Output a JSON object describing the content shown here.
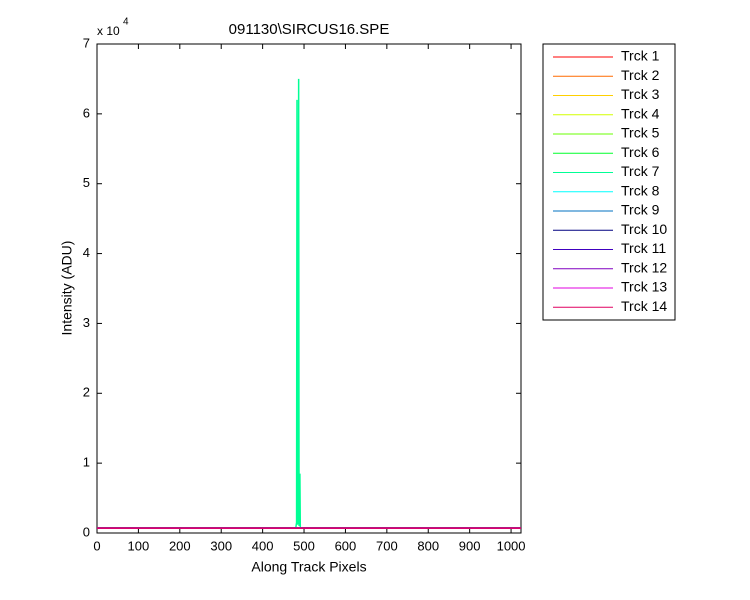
{
  "chart_data": {
    "type": "line",
    "title": "091130\\SIRCUS16.SPE",
    "x_label": "Along Track Pixels",
    "y_label": "Intensity (ADU)",
    "y_multiplier": {
      "base": "x 10",
      "exponent": "4"
    },
    "x": [
      0,
      470,
      480,
      482,
      483,
      484,
      486,
      487,
      488,
      490,
      491,
      500,
      1024
    ],
    "xlim": [
      0,
      1024
    ],
    "xticks": [
      0,
      100,
      200,
      300,
      400,
      500,
      600,
      700,
      800,
      900,
      1000
    ],
    "ylim": [
      0,
      70000
    ],
    "yticks": [
      {
        "value": 0,
        "label": "0"
      },
      {
        "value": 10000,
        "label": "1"
      },
      {
        "value": 20000,
        "label": "2"
      },
      {
        "value": 30000,
        "label": "3"
      },
      {
        "value": 40000,
        "label": "4"
      },
      {
        "value": 50000,
        "label": "5"
      },
      {
        "value": 60000,
        "label": "6"
      },
      {
        "value": 70000,
        "label": "7"
      }
    ],
    "grid": false,
    "legend": "outside-right",
    "series": [
      {
        "name": "Trck 1",
        "color": "#ff0000",
        "values": [
          700,
          700,
          700,
          700,
          700,
          700,
          700,
          700,
          700,
          700,
          700,
          700,
          700
        ]
      },
      {
        "name": "Trck 2",
        "color": "#ff6a00",
        "values": [
          700,
          700,
          700,
          700,
          700,
          700,
          700,
          700,
          700,
          700,
          700,
          700,
          700
        ]
      },
      {
        "name": "Trck 3",
        "color": "#ffd000",
        "values": [
          700,
          700,
          700,
          700,
          700,
          700,
          700,
          700,
          700,
          700,
          700,
          700,
          700
        ]
      },
      {
        "name": "Trck 4",
        "color": "#d4ff00",
        "values": [
          700,
          700,
          700,
          700,
          700,
          700,
          700,
          700,
          700,
          700,
          700,
          700,
          700
        ]
      },
      {
        "name": "Trck 5",
        "color": "#6aff00",
        "values": [
          700,
          700,
          700,
          700,
          700,
          700,
          700,
          700,
          700,
          700,
          700,
          700,
          700
        ]
      },
      {
        "name": "Trck 6",
        "color": "#00ff2b",
        "values": [
          700,
          700,
          700,
          700,
          700,
          700,
          700,
          700,
          700,
          700,
          700,
          700,
          700
        ]
      },
      {
        "name": "Trck 7",
        "color": "#00ff95",
        "values": [
          700,
          700,
          700,
          1500,
          62000,
          1200,
          2000,
          65000,
          1000,
          8500,
          700,
          700,
          700
        ]
      },
      {
        "name": "Trck 8",
        "color": "#00ffff",
        "values": [
          700,
          700,
          700,
          700,
          700,
          700,
          700,
          700,
          700,
          700,
          700,
          700,
          700
        ]
      },
      {
        "name": "Trck 9",
        "color": "#0070c0",
        "values": [
          700,
          700,
          700,
          700,
          700,
          700,
          700,
          700,
          700,
          700,
          700,
          700,
          700
        ]
      },
      {
        "name": "Trck 10",
        "color": "#000080",
        "values": [
          700,
          700,
          700,
          700,
          700,
          700,
          700,
          700,
          700,
          700,
          700,
          700,
          700
        ]
      },
      {
        "name": "Trck 11",
        "color": "#4000c0",
        "values": [
          700,
          700,
          700,
          700,
          700,
          700,
          700,
          700,
          700,
          700,
          700,
          700,
          700
        ]
      },
      {
        "name": "Trck 12",
        "color": "#8000c0",
        "values": [
          700,
          700,
          700,
          700,
          700,
          700,
          700,
          700,
          700,
          700,
          700,
          700,
          700
        ]
      },
      {
        "name": "Trck 13",
        "color": "#e000e0",
        "values": [
          700,
          700,
          700,
          700,
          700,
          700,
          700,
          700,
          700,
          700,
          700,
          700,
          700
        ]
      },
      {
        "name": "Trck 14",
        "color": "#e00060",
        "values": [
          700,
          700,
          700,
          700,
          700,
          700,
          700,
          700,
          700,
          700,
          700,
          700,
          700
        ]
      }
    ]
  }
}
